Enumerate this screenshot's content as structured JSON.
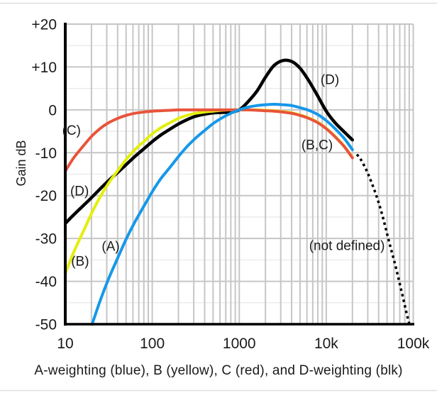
{
  "page": {
    "background": "#ffffff",
    "frame_line_color": "#d9dfe4"
  },
  "chart_data": {
    "type": "line",
    "title": "",
    "ylabel": "Gain dB",
    "caption": "A-weighting (blue), B (yellow), C (red), and D-weighting (blk)",
    "x_scale": "log",
    "xlim": [
      10,
      100000
    ],
    "ylim": [
      -50,
      20
    ],
    "grid": {
      "major_color": "#c6c6c6",
      "minor_horizontal_color": "#e9e9e9",
      "minor_db_step": 5,
      "axis_color": "#000000"
    },
    "x_ticks": [
      {
        "value": 10,
        "label": "10"
      },
      {
        "value": 100,
        "label": "100"
      },
      {
        "value": 1000,
        "label": "1000"
      },
      {
        "value": 10000,
        "label": "10k"
      },
      {
        "value": 100000,
        "label": "100k"
      }
    ],
    "y_ticks": [
      {
        "value": 20,
        "label": "+20"
      },
      {
        "value": 10,
        "label": "+10"
      },
      {
        "value": 0,
        "label": "0"
      },
      {
        "value": -10,
        "label": "-10"
      },
      {
        "value": -20,
        "label": "-20"
      },
      {
        "value": -30,
        "label": "-30"
      },
      {
        "value": -40,
        "label": "-40"
      },
      {
        "value": -50,
        "label": "-50"
      }
    ],
    "series": [
      {
        "name": "A-weighting",
        "color": "#1598e9",
        "style": "solid",
        "width": 4,
        "z": 4,
        "points": [
          [
            10,
            -70.4
          ],
          [
            12.5,
            -63.4
          ],
          [
            16,
            -56.7
          ],
          [
            20,
            -50.5
          ],
          [
            25,
            -44.7
          ],
          [
            31.5,
            -39.4
          ],
          [
            40,
            -34.6
          ],
          [
            50,
            -30.2
          ],
          [
            63,
            -26.2
          ],
          [
            80,
            -22.5
          ],
          [
            100,
            -19.1
          ],
          [
            125,
            -16.1
          ],
          [
            160,
            -13.4
          ],
          [
            200,
            -10.9
          ],
          [
            250,
            -8.6
          ],
          [
            315,
            -6.6
          ],
          [
            400,
            -4.8
          ],
          [
            500,
            -3.2
          ],
          [
            630,
            -1.9
          ],
          [
            800,
            -0.8
          ],
          [
            1000,
            0
          ],
          [
            1250,
            0.6
          ],
          [
            1600,
            1.0
          ],
          [
            2000,
            1.2
          ],
          [
            2500,
            1.3
          ],
          [
            3150,
            1.2
          ],
          [
            4000,
            1.0
          ],
          [
            5000,
            0.5
          ],
          [
            6300,
            -0.1
          ],
          [
            8000,
            -1.1
          ],
          [
            10000,
            -2.5
          ],
          [
            12500,
            -4.3
          ],
          [
            16000,
            -6.6
          ],
          [
            20000,
            -9.3
          ]
        ]
      },
      {
        "name": "B-weighting",
        "color": "#e3ee0e",
        "style": "solid",
        "width": 4,
        "z": 2,
        "points": [
          [
            10,
            -38.2
          ],
          [
            12.5,
            -33.2
          ],
          [
            16,
            -28.5
          ],
          [
            20,
            -24.2
          ],
          [
            25,
            -20.4
          ],
          [
            31.5,
            -17.1
          ],
          [
            40,
            -14.2
          ],
          [
            50,
            -11.6
          ],
          [
            63,
            -9.3
          ],
          [
            80,
            -7.4
          ],
          [
            100,
            -5.6
          ],
          [
            125,
            -4.2
          ],
          [
            160,
            -3.0
          ],
          [
            200,
            -2.0
          ],
          [
            250,
            -1.3
          ],
          [
            315,
            -0.8
          ],
          [
            400,
            -0.5
          ],
          [
            500,
            -0.3
          ],
          [
            630,
            -0.1
          ],
          [
            800,
            0
          ],
          [
            1000,
            0
          ],
          [
            1250,
            0
          ],
          [
            1600,
            0
          ],
          [
            2000,
            -0.1
          ],
          [
            2500,
            -0.2
          ],
          [
            3150,
            -0.4
          ],
          [
            4000,
            -0.7
          ],
          [
            5000,
            -1.2
          ],
          [
            6300,
            -1.9
          ],
          [
            8000,
            -2.9
          ],
          [
            10000,
            -4.3
          ],
          [
            12500,
            -6.1
          ],
          [
            16000,
            -8.4
          ],
          [
            20000,
            -11.1
          ]
        ]
      },
      {
        "name": "C-weighting",
        "color": "#e8543a",
        "style": "solid",
        "width": 4,
        "z": 3,
        "points": [
          [
            10,
            -14.3
          ],
          [
            12.5,
            -11.2
          ],
          [
            16,
            -8.5
          ],
          [
            20,
            -6.2
          ],
          [
            25,
            -4.4
          ],
          [
            31.5,
            -3.0
          ],
          [
            40,
            -2.0
          ],
          [
            50,
            -1.3
          ],
          [
            63,
            -0.8
          ],
          [
            80,
            -0.5
          ],
          [
            100,
            -0.3
          ],
          [
            125,
            -0.2
          ],
          [
            160,
            -0.1
          ],
          [
            200,
            0
          ],
          [
            250,
            0
          ],
          [
            315,
            0
          ],
          [
            400,
            0
          ],
          [
            500,
            0
          ],
          [
            630,
            0
          ],
          [
            800,
            0
          ],
          [
            1000,
            0
          ],
          [
            1250,
            0
          ],
          [
            1600,
            -0.1
          ],
          [
            2000,
            -0.2
          ],
          [
            2500,
            -0.3
          ],
          [
            3150,
            -0.5
          ],
          [
            4000,
            -0.8
          ],
          [
            5000,
            -1.3
          ],
          [
            6300,
            -2.0
          ],
          [
            8000,
            -3.0
          ],
          [
            10000,
            -4.4
          ],
          [
            12500,
            -6.2
          ],
          [
            16000,
            -8.5
          ],
          [
            20000,
            -11.2
          ]
        ]
      },
      {
        "name": "D-weighting",
        "color": "#000000",
        "style": "solid",
        "width": 4.5,
        "z": 1,
        "points": [
          [
            10,
            -26.5
          ],
          [
            12.5,
            -24.5
          ],
          [
            16,
            -22.4
          ],
          [
            20,
            -20.5
          ],
          [
            25,
            -18.5
          ],
          [
            31.5,
            -16.5
          ],
          [
            40,
            -14.6
          ],
          [
            50,
            -12.8
          ],
          [
            63,
            -10.9
          ],
          [
            80,
            -9.1
          ],
          [
            100,
            -7.4
          ],
          [
            125,
            -5.9
          ],
          [
            160,
            -4.5
          ],
          [
            200,
            -3.3
          ],
          [
            250,
            -2.3
          ],
          [
            315,
            -1.5
          ],
          [
            400,
            -1.0
          ],
          [
            500,
            -0.7
          ],
          [
            630,
            -0.6
          ],
          [
            800,
            -0.5
          ],
          [
            1000,
            0
          ],
          [
            1250,
            1.8
          ],
          [
            1600,
            4.4
          ],
          [
            2000,
            7.6
          ],
          [
            2500,
            10.3
          ],
          [
            3150,
            11.5
          ],
          [
            4000,
            11.3
          ],
          [
            5000,
            9.7
          ],
          [
            6300,
            6.8
          ],
          [
            8000,
            3.2
          ],
          [
            10000,
            -0.3
          ],
          [
            12500,
            -2.9
          ],
          [
            16000,
            -5.1
          ],
          [
            20000,
            -7.0
          ]
        ]
      },
      {
        "name": "above-20kHz-not-defined",
        "color": "#000000",
        "style": "dotted",
        "width": 3.5,
        "z": 5,
        "points": [
          [
            22500,
            -10.4
          ],
          [
            25000,
            -11.6
          ],
          [
            28500,
            -13.8
          ],
          [
            31500,
            -15.8
          ],
          [
            37500,
            -19.9
          ],
          [
            44000,
            -24.5
          ],
          [
            52500,
            -30.6
          ],
          [
            62500,
            -36.4
          ],
          [
            72500,
            -41.9
          ],
          [
            84500,
            -47.7
          ],
          [
            91000,
            -50.2
          ]
        ]
      }
    ],
    "annotations": [
      {
        "text": "(C)",
        "f": 11.8,
        "db": -4.7
      },
      {
        "text": "(D)",
        "f": 14.6,
        "db": -18.9
      },
      {
        "text": "(B)",
        "f": 14.8,
        "db": -35.3
      },
      {
        "text": "(A)",
        "f": 33.3,
        "db": -31.8
      },
      {
        "text": "(D)",
        "f": 11020,
        "db": 7.1
      },
      {
        "text": "(B,C)",
        "f": 7850,
        "db": -8.1
      },
      {
        "text": "(not defined)",
        "f": 17300,
        "db": -31.6
      }
    ]
  }
}
